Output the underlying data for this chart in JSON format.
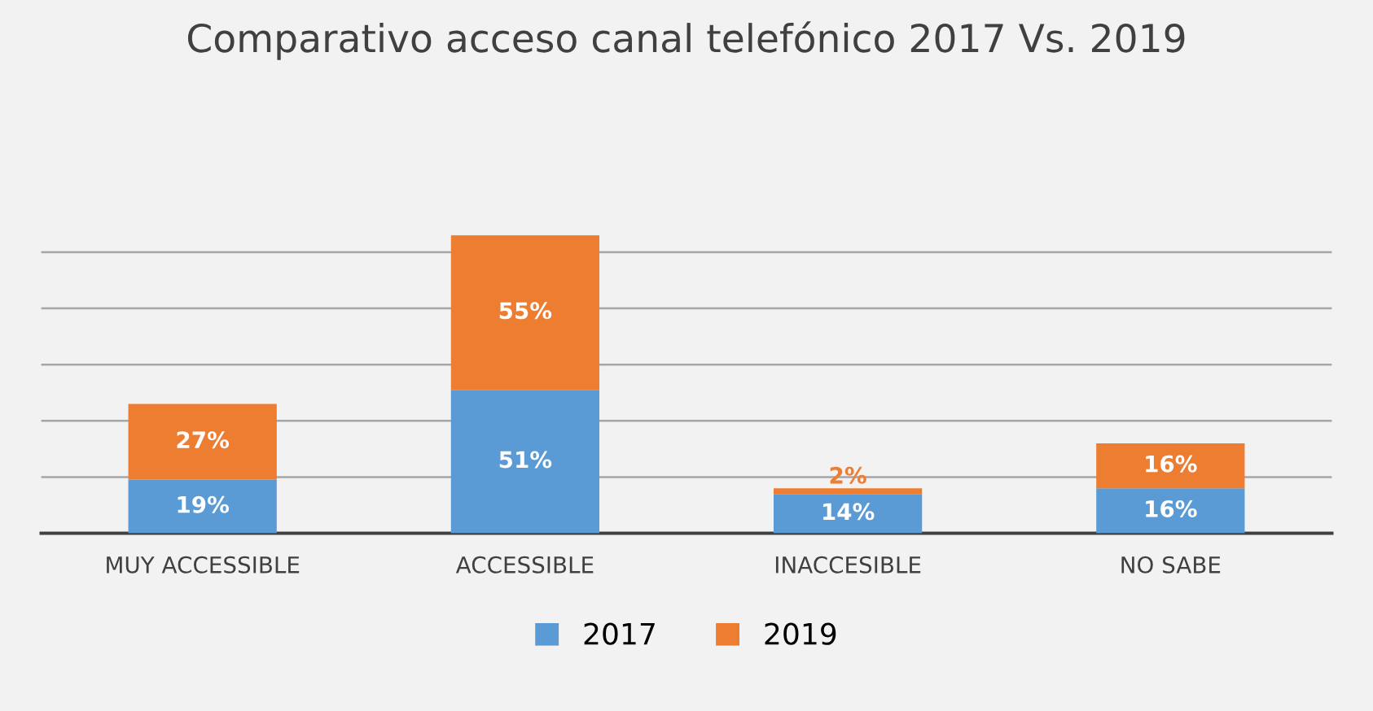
{
  "chart_data": {
    "type": "bar",
    "title": "Comparativo acceso canal telefónico 2017 Vs. 2019",
    "categories": [
      "MUY ACCESSIBLE",
      "ACCESSIBLE",
      "INACCESIBLE",
      "NO SABE"
    ],
    "stacked": true,
    "grid": "y",
    "legend": "bottom",
    "series": [
      {
        "name": "2017",
        "color": "#5b9bd5",
        "values": [
          19,
          51,
          14,
          16
        ],
        "value_labels": [
          "19%",
          "51%",
          "14%",
          "16%"
        ]
      },
      {
        "name": "2019",
        "color": "#ed7d31",
        "values": [
          27,
          55,
          2,
          16
        ],
        "value_labels": [
          "27%",
          "55%",
          "2%",
          "16%"
        ]
      }
    ]
  }
}
